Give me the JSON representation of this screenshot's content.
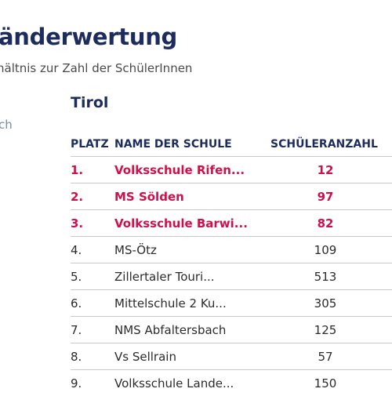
{
  "page": {
    "title": "änderwertung",
    "subtitle": "hältnis zur Zahl der SchülerInnen",
    "side_text": "ch"
  },
  "region": "Tirol",
  "table": {
    "headers": {
      "platz": "PLATZ",
      "name": "NAME DER SCHULE",
      "count": "SCHÜLERANZAHL"
    },
    "rows": [
      {
        "platz": "1.",
        "name": "Volksschule Rifen...",
        "count": "12",
        "highlight": true
      },
      {
        "platz": "2.",
        "name": "MS Sölden",
        "count": "97",
        "highlight": true
      },
      {
        "platz": "3.",
        "name": "Volksschule Barwi...",
        "count": "82",
        "highlight": true
      },
      {
        "platz": "4.",
        "name": "MS-Ötz",
        "count": "109",
        "highlight": false
      },
      {
        "platz": "5.",
        "name": "Zillertaler Touri...",
        "count": "513",
        "highlight": false
      },
      {
        "platz": "6.",
        "name": "Mittelschule 2 Ku...",
        "count": "305",
        "highlight": false
      },
      {
        "platz": "7.",
        "name": "NMS Abfaltersbach",
        "count": "125",
        "highlight": false
      },
      {
        "platz": "8.",
        "name": "Vs Sellrain",
        "count": "57",
        "highlight": false
      },
      {
        "platz": "9.",
        "name": "Volksschule Lande...",
        "count": "150",
        "highlight": false
      }
    ]
  },
  "colors": {
    "heading": "#1d2c5e",
    "highlight": "#d0104a"
  }
}
